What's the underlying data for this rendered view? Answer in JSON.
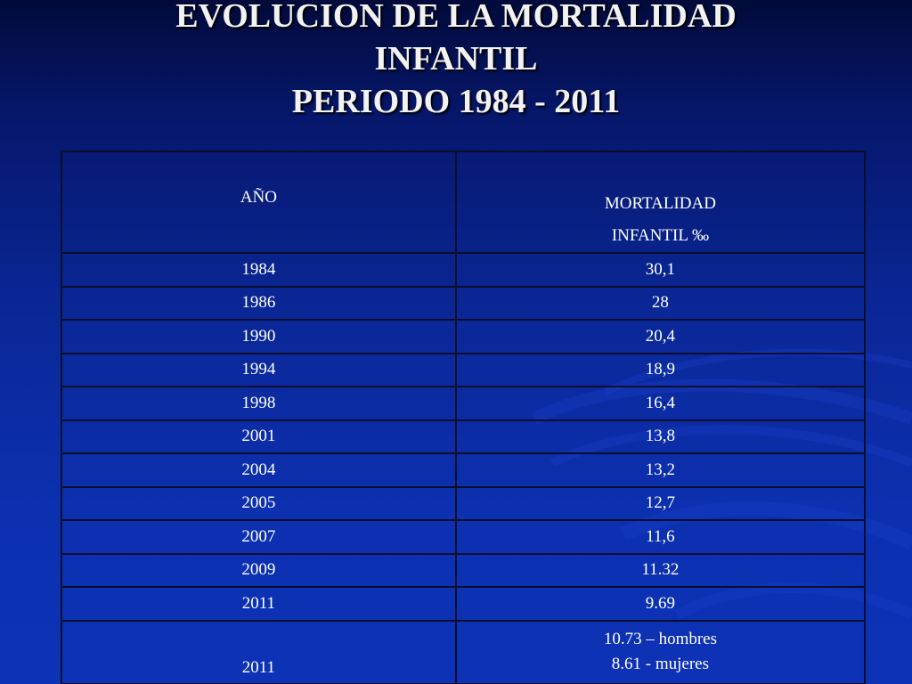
{
  "slide": {
    "title_lines": [
      "EVOLUCION DE LA MORTALIDAD",
      "INFANTIL",
      "PERIODO 1984 - 2011"
    ]
  },
  "table": {
    "header": {
      "year": "AÑO",
      "mortality_line1": "MORTALIDAD",
      "mortality_line2": "INFANTIL ‰"
    },
    "rows": [
      {
        "year": "1984",
        "value": "30,1"
      },
      {
        "year": "1986",
        "value": "28"
      },
      {
        "year": "1990",
        "value": "20,4"
      },
      {
        "year": "1994",
        "value": "18,9"
      },
      {
        "year": "1998",
        "value": "16,4"
      },
      {
        "year": "2001",
        "value": "13,8"
      },
      {
        "year": "2004",
        "value": "13,2"
      },
      {
        "year": "2005",
        "value": "12,7"
      },
      {
        "year": "2007",
        "value": "11,6"
      },
      {
        "year": "2009",
        "value": "11.32"
      },
      {
        "year": "2011",
        "value": "9.69"
      }
    ],
    "last_row": {
      "year": "2011",
      "value_line1": "10.73 – hombres",
      "value_line2": "8.61 - mujeres"
    }
  },
  "colors": {
    "background_top": "#020a3a",
    "background_bottom": "#0d32b6",
    "text": "#ffffff",
    "border": "#0a0e2a"
  }
}
